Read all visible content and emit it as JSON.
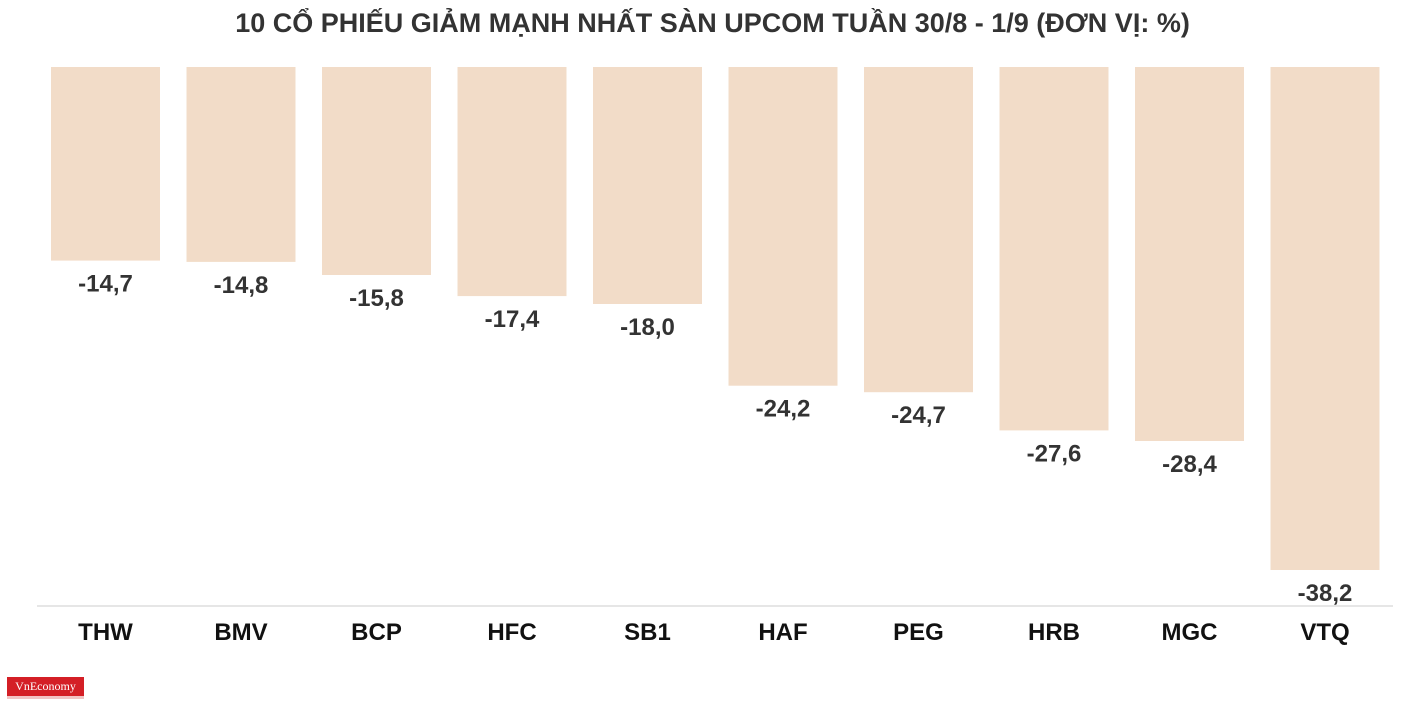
{
  "chart_data": {
    "type": "bar",
    "title": "10 CỔ PHIẾU GIẢM MẠNH NHẤT SÀN UPCOM TUẦN 30/8 - 1/9 (ĐƠN VỊ: %)",
    "xlabel": "",
    "ylabel": "",
    "categories": [
      "THW",
      "BMV",
      "BCP",
      "HFC",
      "SB1",
      "HAF",
      "PEG",
      "HRB",
      "MGC",
      "VTQ"
    ],
    "values": [
      -14.7,
      -14.8,
      -15.8,
      -17.4,
      -18.0,
      -24.2,
      -24.7,
      -27.6,
      -28.4,
      -38.2
    ],
    "data_labels": [
      "-14,7",
      "-14,8",
      "-15,8",
      "-17,4",
      "-18,0",
      "-24,2",
      "-24,7",
      "-27,6",
      "-28,4",
      "-38,2"
    ],
    "ylim": [
      -40,
      0
    ],
    "grid": false,
    "legend": "none",
    "colors": {
      "bar": "#f2dcc8",
      "label": "#333333",
      "axis": "#e6e6e6"
    }
  },
  "logo": {
    "text": "VnEconomy",
    "color": "#d41f26"
  }
}
